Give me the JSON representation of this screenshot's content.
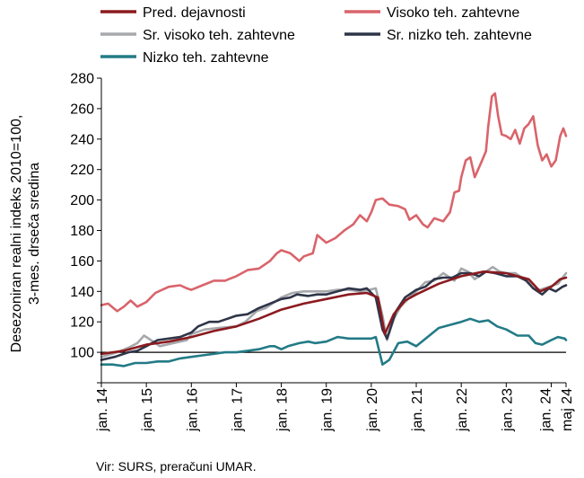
{
  "chart_data": {
    "type": "line",
    "ylabel": [
      "Desezoniran realni indeks 2010=100,",
      "3-mes. drseča sredina"
    ],
    "ylim": [
      80,
      280
    ],
    "yticks": [
      100,
      120,
      140,
      160,
      180,
      200,
      220,
      240,
      260,
      280
    ],
    "xlim": [
      2014.0,
      2024.33
    ],
    "xticks": [
      {
        "label": "jan. 14",
        "x": 2014.0
      },
      {
        "label": "jan. 15",
        "x": 2015.0
      },
      {
        "label": "jan. 16",
        "x": 2016.0
      },
      {
        "label": "jan. 17",
        "x": 2017.0
      },
      {
        "label": "jan. 18",
        "x": 2018.0
      },
      {
        "label": "jan. 19",
        "x": 2019.0
      },
      {
        "label": "jan. 20",
        "x": 2020.0
      },
      {
        "label": "jan. 21",
        "x": 2021.0
      },
      {
        "label": "jan. 22",
        "x": 2022.0
      },
      {
        "label": "jan. 23",
        "x": 2023.0
      },
      {
        "label": "jan. 24",
        "x": 2024.0
      },
      {
        "label": "maj 24",
        "x": 2024.33
      }
    ],
    "reference_line": 100,
    "source": "Vir: SURS, preračuni UMAR.",
    "series": [
      {
        "name": "Pred. dejavnosti",
        "color": "#8b1a1f",
        "points": [
          [
            2014.0,
            99
          ],
          [
            2014.5,
            101
          ],
          [
            2015.0,
            105
          ],
          [
            2015.5,
            107
          ],
          [
            2016.0,
            110
          ],
          [
            2016.5,
            114
          ],
          [
            2017.0,
            117
          ],
          [
            2017.5,
            122
          ],
          [
            2018.0,
            128
          ],
          [
            2018.5,
            132
          ],
          [
            2019.0,
            135
          ],
          [
            2019.5,
            138
          ],
          [
            2019.9,
            139
          ],
          [
            2020.15,
            136
          ],
          [
            2020.3,
            112
          ],
          [
            2020.5,
            125
          ],
          [
            2020.75,
            134
          ],
          [
            2021.0,
            138
          ],
          [
            2021.5,
            145
          ],
          [
            2022.0,
            150
          ],
          [
            2022.5,
            153
          ],
          [
            2023.0,
            152
          ],
          [
            2023.5,
            148
          ],
          [
            2023.75,
            140
          ],
          [
            2024.0,
            143
          ],
          [
            2024.2,
            148
          ],
          [
            2024.33,
            149
          ]
        ]
      },
      {
        "name": "Visoko teh. zahtevne",
        "color": "#d9646b",
        "points": [
          [
            2014.0,
            131
          ],
          [
            2014.15,
            132
          ],
          [
            2014.35,
            127
          ],
          [
            2014.5,
            130
          ],
          [
            2014.65,
            134
          ],
          [
            2014.8,
            130
          ],
          [
            2015.0,
            133
          ],
          [
            2015.2,
            139
          ],
          [
            2015.35,
            141
          ],
          [
            2015.5,
            143
          ],
          [
            2015.75,
            144
          ],
          [
            2015.9,
            142
          ],
          [
            2016.0,
            141
          ],
          [
            2016.25,
            144
          ],
          [
            2016.5,
            147
          ],
          [
            2016.75,
            147
          ],
          [
            2017.0,
            150
          ],
          [
            2017.25,
            154
          ],
          [
            2017.5,
            155
          ],
          [
            2017.75,
            160
          ],
          [
            2017.9,
            165
          ],
          [
            2018.0,
            167
          ],
          [
            2018.2,
            165
          ],
          [
            2018.4,
            160
          ],
          [
            2018.5,
            163
          ],
          [
            2018.7,
            165
          ],
          [
            2018.8,
            177
          ],
          [
            2019.0,
            172
          ],
          [
            2019.2,
            175
          ],
          [
            2019.4,
            180
          ],
          [
            2019.6,
            184
          ],
          [
            2019.75,
            190
          ],
          [
            2019.9,
            186
          ],
          [
            2020.0,
            192
          ],
          [
            2020.1,
            200
          ],
          [
            2020.25,
            201
          ],
          [
            2020.4,
            197
          ],
          [
            2020.6,
            196
          ],
          [
            2020.75,
            194
          ],
          [
            2020.85,
            187
          ],
          [
            2021.0,
            190
          ],
          [
            2021.15,
            184
          ],
          [
            2021.25,
            182
          ],
          [
            2021.4,
            188
          ],
          [
            2021.6,
            186
          ],
          [
            2021.75,
            192
          ],
          [
            2021.85,
            205
          ],
          [
            2021.95,
            206
          ],
          [
            2022.0,
            215
          ],
          [
            2022.1,
            226
          ],
          [
            2022.2,
            228
          ],
          [
            2022.3,
            215
          ],
          [
            2022.45,
            225
          ],
          [
            2022.55,
            232
          ],
          [
            2022.6,
            248
          ],
          [
            2022.68,
            268
          ],
          [
            2022.75,
            270
          ],
          [
            2022.82,
            255
          ],
          [
            2022.9,
            243
          ],
          [
            2023.0,
            242
          ],
          [
            2023.1,
            240
          ],
          [
            2023.2,
            246
          ],
          [
            2023.3,
            237
          ],
          [
            2023.4,
            247
          ],
          [
            2023.5,
            250
          ],
          [
            2023.6,
            255
          ],
          [
            2023.7,
            236
          ],
          [
            2023.8,
            226
          ],
          [
            2023.9,
            230
          ],
          [
            2024.0,
            222
          ],
          [
            2024.1,
            226
          ],
          [
            2024.2,
            242
          ],
          [
            2024.27,
            247
          ],
          [
            2024.33,
            242
          ]
        ]
      },
      {
        "name": "Sr. visoko teh. zahtevne",
        "color": "#a6a8ab",
        "points": [
          [
            2014.0,
            97
          ],
          [
            2014.35,
            100
          ],
          [
            2014.6,
            103
          ],
          [
            2014.8,
            106
          ],
          [
            2014.95,
            111
          ],
          [
            2015.1,
            108
          ],
          [
            2015.3,
            104
          ],
          [
            2015.6,
            106
          ],
          [
            2015.9,
            108
          ],
          [
            2016.0,
            112
          ],
          [
            2016.3,
            115
          ],
          [
            2016.6,
            116
          ],
          [
            2017.0,
            117
          ],
          [
            2017.2,
            120
          ],
          [
            2017.45,
            127
          ],
          [
            2017.65,
            129
          ],
          [
            2017.85,
            133
          ],
          [
            2018.0,
            136
          ],
          [
            2018.25,
            139
          ],
          [
            2018.5,
            140
          ],
          [
            2018.75,
            140
          ],
          [
            2019.0,
            140
          ],
          [
            2019.25,
            141
          ],
          [
            2019.5,
            141
          ],
          [
            2019.75,
            140
          ],
          [
            2019.95,
            141
          ],
          [
            2020.1,
            142
          ],
          [
            2020.25,
            124
          ],
          [
            2020.35,
            108
          ],
          [
            2020.5,
            122
          ],
          [
            2020.65,
            130
          ],
          [
            2020.85,
            136
          ],
          [
            2021.0,
            140
          ],
          [
            2021.2,
            146
          ],
          [
            2021.4,
            147
          ],
          [
            2021.6,
            152
          ],
          [
            2021.85,
            147
          ],
          [
            2022.0,
            155
          ],
          [
            2022.15,
            153
          ],
          [
            2022.3,
            148
          ],
          [
            2022.5,
            152
          ],
          [
            2022.7,
            156
          ],
          [
            2022.85,
            153
          ],
          [
            2023.0,
            152
          ],
          [
            2023.2,
            152
          ],
          [
            2023.4,
            148
          ],
          [
            2023.6,
            142
          ],
          [
            2023.75,
            141
          ],
          [
            2023.95,
            143
          ],
          [
            2024.15,
            145
          ],
          [
            2024.33,
            152
          ]
        ]
      },
      {
        "name": "Sr. nizko teh. zahtevne",
        "color": "#2f3548",
        "points": [
          [
            2014.0,
            95
          ],
          [
            2014.3,
            97
          ],
          [
            2014.6,
            100
          ],
          [
            2014.8,
            101
          ],
          [
            2015.0,
            104
          ],
          [
            2015.25,
            108
          ],
          [
            2015.5,
            109
          ],
          [
            2015.75,
            110
          ],
          [
            2016.0,
            113
          ],
          [
            2016.15,
            117
          ],
          [
            2016.4,
            120
          ],
          [
            2016.6,
            120
          ],
          [
            2016.8,
            122
          ],
          [
            2017.0,
            124
          ],
          [
            2017.25,
            125
          ],
          [
            2017.5,
            129
          ],
          [
            2017.75,
            132
          ],
          [
            2018.0,
            135
          ],
          [
            2018.2,
            136
          ],
          [
            2018.35,
            138
          ],
          [
            2018.6,
            137
          ],
          [
            2018.8,
            138
          ],
          [
            2019.0,
            138
          ],
          [
            2019.25,
            140
          ],
          [
            2019.5,
            142
          ],
          [
            2019.75,
            141
          ],
          [
            2019.9,
            142
          ],
          [
            2020.1,
            136
          ],
          [
            2020.25,
            115
          ],
          [
            2020.35,
            109
          ],
          [
            2020.55,
            127
          ],
          [
            2020.75,
            136
          ],
          [
            2021.0,
            141
          ],
          [
            2021.2,
            143
          ],
          [
            2021.4,
            148
          ],
          [
            2021.6,
            149
          ],
          [
            2021.8,
            149
          ],
          [
            2022.0,
            152
          ],
          [
            2022.2,
            152
          ],
          [
            2022.4,
            150
          ],
          [
            2022.55,
            153
          ],
          [
            2022.75,
            152
          ],
          [
            2023.0,
            150
          ],
          [
            2023.25,
            150
          ],
          [
            2023.45,
            147
          ],
          [
            2023.6,
            142
          ],
          [
            2023.8,
            138
          ],
          [
            2023.95,
            142
          ],
          [
            2024.1,
            140
          ],
          [
            2024.25,
            143
          ],
          [
            2024.33,
            144
          ]
        ]
      },
      {
        "name": "Nizko teh. zahtevne",
        "color": "#237b86",
        "points": [
          [
            2014.0,
            92
          ],
          [
            2014.25,
            92
          ],
          [
            2014.5,
            91
          ],
          [
            2014.75,
            93
          ],
          [
            2015.0,
            93
          ],
          [
            2015.25,
            94
          ],
          [
            2015.5,
            94
          ],
          [
            2015.75,
            96
          ],
          [
            2016.0,
            97
          ],
          [
            2016.25,
            98
          ],
          [
            2016.5,
            99
          ],
          [
            2016.75,
            100
          ],
          [
            2017.0,
            100
          ],
          [
            2017.25,
            101
          ],
          [
            2017.5,
            102
          ],
          [
            2017.75,
            104
          ],
          [
            2017.85,
            104
          ],
          [
            2018.0,
            102
          ],
          [
            2018.15,
            104
          ],
          [
            2018.4,
            106
          ],
          [
            2018.6,
            107
          ],
          [
            2018.75,
            106
          ],
          [
            2019.0,
            107
          ],
          [
            2019.25,
            110
          ],
          [
            2019.5,
            109
          ],
          [
            2019.75,
            109
          ],
          [
            2020.0,
            109
          ],
          [
            2020.1,
            110
          ],
          [
            2020.25,
            92
          ],
          [
            2020.4,
            95
          ],
          [
            2020.6,
            106
          ],
          [
            2020.8,
            107
          ],
          [
            2021.0,
            104
          ],
          [
            2021.25,
            110
          ],
          [
            2021.5,
            116
          ],
          [
            2021.75,
            118
          ],
          [
            2022.0,
            120
          ],
          [
            2022.2,
            122
          ],
          [
            2022.4,
            120
          ],
          [
            2022.6,
            121
          ],
          [
            2022.8,
            117
          ],
          [
            2023.0,
            115
          ],
          [
            2023.25,
            111
          ],
          [
            2023.5,
            111
          ],
          [
            2023.65,
            106
          ],
          [
            2023.8,
            105
          ],
          [
            2024.0,
            108
          ],
          [
            2024.15,
            110
          ],
          [
            2024.3,
            109
          ],
          [
            2024.33,
            108
          ]
        ]
      }
    ]
  }
}
